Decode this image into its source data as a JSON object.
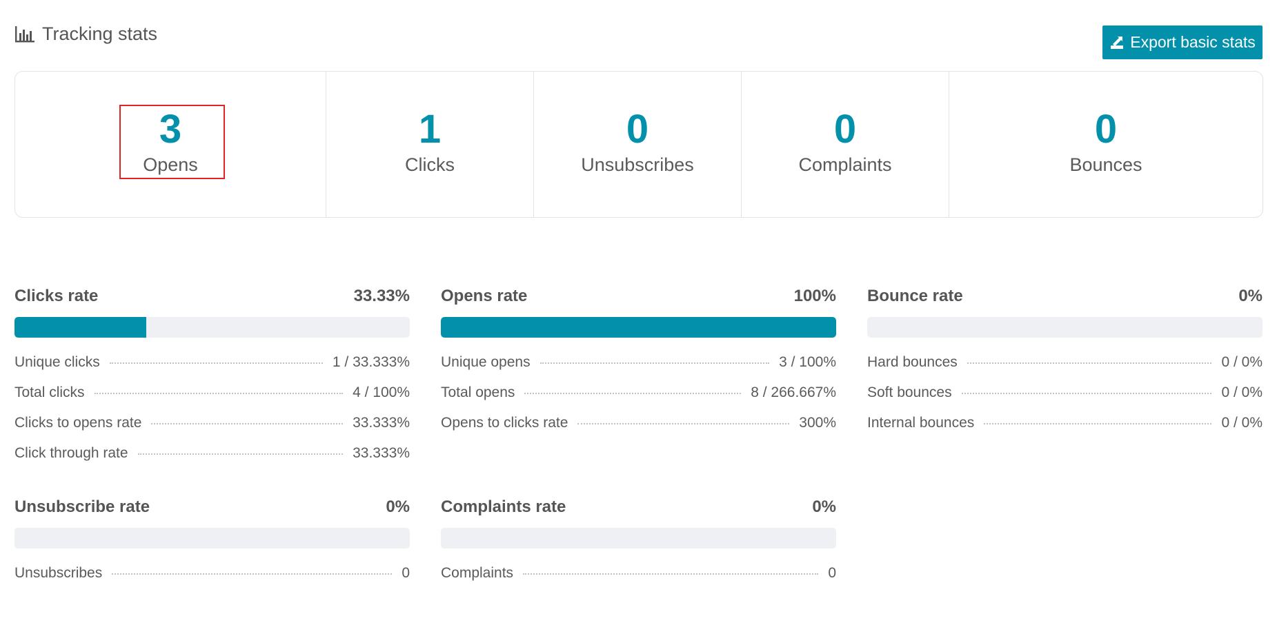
{
  "header": {
    "title": "Tracking stats",
    "title_icon": "bar-chart-icon",
    "export_label": "Export basic stats",
    "export_icon": "export-icon"
  },
  "colors": {
    "accent": "#0390ab",
    "highlight": "#e02424",
    "track": "#eef0f4"
  },
  "stats": [
    {
      "value": "3",
      "label": "Opens"
    },
    {
      "value": "1",
      "label": "Clicks"
    },
    {
      "value": "0",
      "label": "Unsubscribes"
    },
    {
      "value": "0",
      "label": "Complaints"
    },
    {
      "value": "0",
      "label": "Bounces"
    }
  ],
  "rates": {
    "clicks": {
      "title": "Clicks rate",
      "value": "33.33%",
      "fill": 0.3333,
      "rows": [
        {
          "label": "Unique clicks",
          "value": "1 / 33.333%"
        },
        {
          "label": "Total clicks",
          "value": "4 / 100%"
        },
        {
          "label": "Clicks to opens rate",
          "value": "33.333%"
        },
        {
          "label": "Click through rate",
          "value": "33.333%"
        }
      ]
    },
    "opens": {
      "title": "Opens rate",
      "value": "100%",
      "fill": 1.0,
      "rows": [
        {
          "label": "Unique opens",
          "value": "3 / 100%"
        },
        {
          "label": "Total opens",
          "value": "8 / 266.667%"
        },
        {
          "label": "Opens to clicks rate",
          "value": "300%"
        }
      ]
    },
    "bounce": {
      "title": "Bounce rate",
      "value": "0%",
      "fill": 0,
      "rows": [
        {
          "label": "Hard bounces",
          "value": "0 / 0%"
        },
        {
          "label": "Soft bounces",
          "value": "0 / 0%"
        },
        {
          "label": "Internal bounces",
          "value": "0 / 0%"
        }
      ]
    },
    "unsubscribe": {
      "title": "Unsubscribe rate",
      "value": "0%",
      "fill": 0,
      "rows": [
        {
          "label": "Unsubscribes",
          "value": "0"
        }
      ]
    },
    "complaints": {
      "title": "Complaints rate",
      "value": "0%",
      "fill": 0,
      "rows": [
        {
          "label": "Complaints",
          "value": "0"
        }
      ]
    }
  }
}
